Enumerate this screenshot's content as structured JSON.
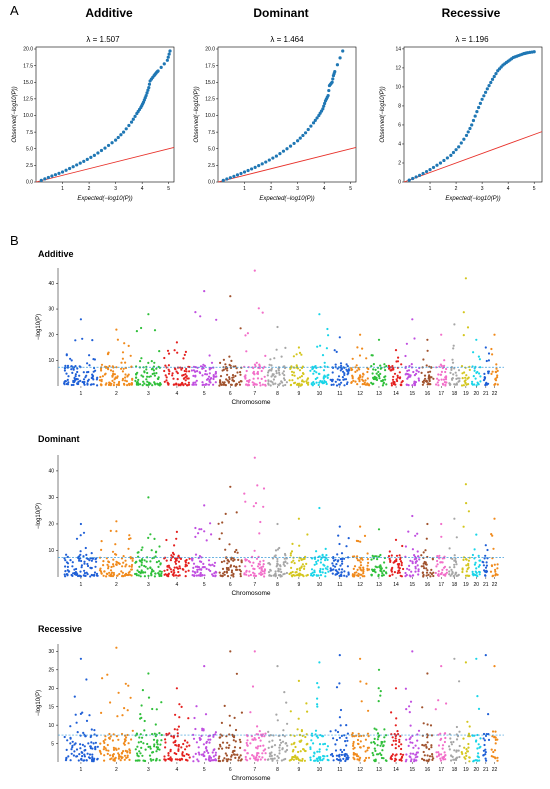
{
  "panel_a": "A",
  "panel_b": "B",
  "chart_data": [
    {
      "type": "scatter",
      "title": "Additive",
      "subtitle": "λ = 1.507",
      "xlabel": "Expected(−log10(P))",
      "ylabel": "Observed(−log10(P))",
      "xticks": [
        "1",
        "2",
        "3",
        "4",
        "5"
      ],
      "yticks": [
        "0.0",
        "2.5",
        "5.0",
        "7.5",
        "10.0",
        "12.5",
        "15.0",
        "17.5",
        "20.0"
      ],
      "xlim": [
        0,
        5.2
      ],
      "ylim": [
        0,
        20.3
      ],
      "points": [
        [
          0.2,
          0.25
        ],
        [
          0.6,
          0.9
        ],
        [
          1.0,
          1.5
        ],
        [
          1.4,
          2.3
        ],
        [
          1.8,
          3.1
        ],
        [
          2.2,
          4.0
        ],
        [
          2.6,
          5.1
        ],
        [
          3.0,
          6.3
        ],
        [
          3.3,
          7.5
        ],
        [
          3.6,
          9.0
        ],
        [
          3.8,
          10.3
        ],
        [
          3.95,
          11.2
        ],
        [
          4.05,
          12.0
        ],
        [
          4.15,
          13.0
        ],
        [
          4.25,
          14.2
        ],
        [
          4.3,
          15.2
        ],
        [
          4.45,
          16.0
        ],
        [
          4.55,
          16.5
        ],
        [
          4.6,
          16.7
        ],
        [
          4.95,
          18.3
        ],
        [
          5.05,
          19.7
        ]
      ],
      "reference_line": [
        [
          0,
          0
        ],
        [
          5.2,
          5.2
        ]
      ]
    },
    {
      "type": "scatter",
      "title": "Dominant",
      "subtitle": "λ = 1.464",
      "xlabel": "Expected(−log10(P))",
      "ylabel": "Observed(−log10(P))",
      "xticks": [
        "1",
        "2",
        "3",
        "4",
        "5"
      ],
      "yticks": [
        "0.0",
        "2.5",
        "5.0",
        "7.5",
        "10.0",
        "12.5",
        "15.0",
        "17.5",
        "20.0"
      ],
      "xlim": [
        0,
        5.2
      ],
      "ylim": [
        0,
        20.3
      ],
      "points": [
        [
          0.2,
          0.25
        ],
        [
          0.6,
          0.85
        ],
        [
          1.0,
          1.5
        ],
        [
          1.4,
          2.2
        ],
        [
          1.8,
          3.0
        ],
        [
          2.2,
          3.9
        ],
        [
          2.6,
          5.0
        ],
        [
          3.0,
          6.2
        ],
        [
          3.3,
          7.4
        ],
        [
          3.6,
          8.9
        ],
        [
          3.8,
          10.0
        ],
        [
          3.95,
          11.0
        ],
        [
          4.05,
          12.2
        ],
        [
          4.15,
          13.0
        ],
        [
          4.2,
          14.5
        ],
        [
          4.3,
          15.0
        ],
        [
          4.35,
          16.0
        ],
        [
          4.4,
          16.6
        ],
        [
          4.7,
          19.7
        ]
      ],
      "reference_line": [
        [
          0,
          0
        ],
        [
          5.2,
          5.2
        ]
      ]
    },
    {
      "type": "scatter",
      "title": "Recessive",
      "subtitle": "λ = 1.196",
      "xlabel": "Expected(−log10(P))",
      "ylabel": "Observed(−log10(P))",
      "xticks": [
        "1",
        "2",
        "3",
        "4",
        "5"
      ],
      "yticks": [
        "0",
        "2",
        "4",
        "6",
        "8",
        "10",
        "12",
        "14"
      ],
      "xlim": [
        0,
        5.3
      ],
      "ylim": [
        0,
        14.2
      ],
      "points": [
        [
          0.2,
          0.2
        ],
        [
          0.6,
          0.7
        ],
        [
          1.0,
          1.3
        ],
        [
          1.4,
          2.0
        ],
        [
          1.8,
          2.8
        ],
        [
          2.1,
          3.7
        ],
        [
          2.4,
          4.9
        ],
        [
          2.6,
          6.0
        ],
        [
          2.8,
          7.4
        ],
        [
          3.0,
          8.7
        ],
        [
          3.2,
          9.8
        ],
        [
          3.4,
          10.8
        ],
        [
          3.6,
          11.7
        ],
        [
          3.8,
          12.3
        ],
        [
          4.0,
          12.7
        ],
        [
          4.2,
          13.1
        ],
        [
          4.4,
          13.3
        ],
        [
          4.6,
          13.5
        ],
        [
          4.75,
          13.6
        ],
        [
          5.0,
          13.7
        ]
      ],
      "reference_line": [
        [
          0,
          0
        ],
        [
          5.3,
          5.3
        ]
      ]
    },
    {
      "type": "scatter",
      "title": "Additive",
      "xlabel": "Chromosome",
      "ylabel": "−log10(P)",
      "categories": [
        "1",
        "2",
        "3",
        "4",
        "5",
        "6",
        "7",
        "8",
        "9",
        "10",
        "11",
        "12",
        "13",
        "14",
        "15",
        "16",
        "17",
        "18",
        "19",
        "20",
        "21",
        "22"
      ],
      "yticks": [
        "10",
        "20",
        "30",
        "40"
      ],
      "ylim": [
        0,
        46
      ],
      "threshold": 7.3,
      "series_peaks": [
        26,
        22,
        28,
        17,
        37,
        35,
        45,
        23,
        15,
        28,
        19,
        20,
        18,
        14,
        26,
        18,
        20,
        24,
        42,
        18,
        15,
        20
      ]
    },
    {
      "type": "scatter",
      "title": "Dominant",
      "xlabel": "Chromosome",
      "ylabel": "−log10(P)",
      "categories": [
        "1",
        "2",
        "3",
        "4",
        "5",
        "6",
        "7",
        "8",
        "9",
        "10",
        "11",
        "12",
        "13",
        "14",
        "15",
        "16",
        "17",
        "18",
        "19",
        "20",
        "21",
        "22"
      ],
      "yticks": [
        "10",
        "20",
        "30",
        "40"
      ],
      "ylim": [
        0,
        46
      ],
      "threshold": 7.3,
      "series_peaks": [
        20,
        21,
        30,
        17,
        27,
        34,
        45,
        20,
        22,
        26,
        19,
        19,
        18,
        14,
        23,
        20,
        20,
        22,
        35,
        16,
        12,
        22
      ]
    },
    {
      "type": "scatter",
      "title": "Recessive",
      "xlabel": "Chromosome",
      "ylabel": "−log10(P)",
      "categories": [
        "1",
        "2",
        "3",
        "4",
        "5",
        "6",
        "7",
        "8",
        "9",
        "10",
        "11",
        "12",
        "13",
        "14",
        "15",
        "16",
        "17",
        "18",
        "19",
        "20",
        "21",
        "22"
      ],
      "yticks": [
        "5",
        "10",
        "15",
        "20",
        "25",
        "30"
      ],
      "ylim": [
        0,
        32
      ],
      "threshold": 7.3,
      "series_peaks": [
        28,
        31,
        24,
        20,
        26,
        30,
        30,
        26,
        22,
        27,
        29,
        28,
        25,
        20,
        30,
        24,
        26,
        28,
        27,
        28,
        29,
        26
      ]
    }
  ],
  "qq_colors": {
    "points": "#1f77b4",
    "line": "#e8322b"
  },
  "chrom_colors": [
    "#1f5fd6",
    "#f08a1c",
    "#2fbf3a",
    "#e4201f",
    "#c04fe0",
    "#a0522d",
    "#f26fc9",
    "#a6a6a6",
    "#d4c61e",
    "#19d5e8",
    "#1f5fd6",
    "#f08a1c",
    "#2fbf3a",
    "#e4201f",
    "#c04fe0",
    "#a0522d",
    "#f26fc9",
    "#a6a6a6",
    "#d4c61e",
    "#19d5e8",
    "#1f5fd6",
    "#f08a1c"
  ],
  "threshold_color": "#3a9ad9"
}
